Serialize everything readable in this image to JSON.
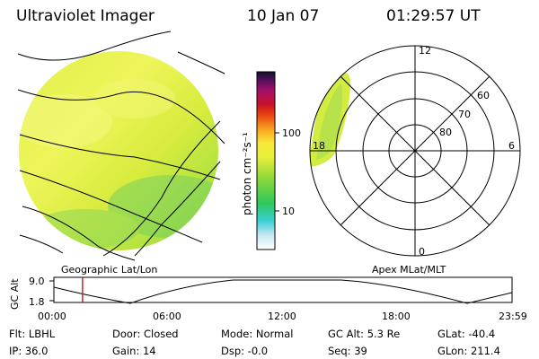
{
  "header": {
    "instrument": "Ultraviolet Imager",
    "date": "10 Jan 07",
    "time": "01:29:57 UT"
  },
  "colorbar": {
    "unit_label": "photon cm⁻²s⁻¹",
    "ticks": [
      {
        "value": 10,
        "label": "10"
      },
      {
        "value": 100,
        "label": "100"
      }
    ]
  },
  "panels": {
    "left_caption": "Geographic Lat/Lon",
    "right_caption": "Apex MLat/MLT"
  },
  "polar": {
    "mlt_labels": {
      "top": "12",
      "left": "18",
      "right": "6",
      "bottom": "0"
    },
    "lat_labels": [
      {
        "value": 60,
        "label": "60"
      },
      {
        "value": 70,
        "label": "70"
      },
      {
        "value": 80,
        "label": "80"
      }
    ]
  },
  "altitude_plot": {
    "ylabel": "GC Alt",
    "yticks": [
      "9.0",
      "1.8"
    ],
    "xticks": [
      "00:00",
      "06:00",
      "12:00",
      "18:00",
      "23:59"
    ],
    "current_time_hours": 1.5,
    "marker_color": "#d42020"
  },
  "info": {
    "filter": "Flt: LBHL",
    "ip": "IP: 36.0",
    "door": "Door: Closed",
    "gain": "Gain: 14",
    "mode": "Mode: Normal",
    "dsp": "Dsp:   -0.0",
    "gc_alt": "GC Alt: 5.3 Re",
    "seq": "Seq: 39",
    "glat": "GLat: -40.4",
    "glon": "GLon: 211.4"
  }
}
